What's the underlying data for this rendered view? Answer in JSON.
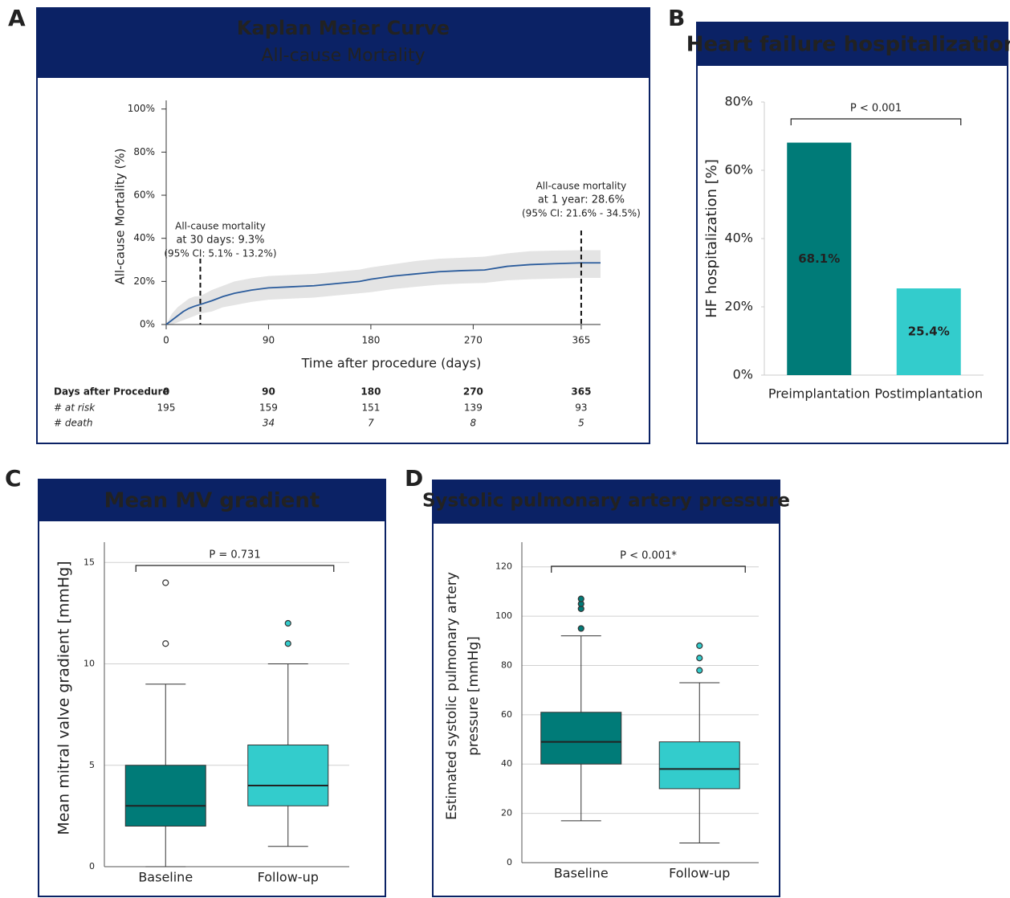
{
  "chart_data": [
    {
      "panel": "A",
      "type": "line",
      "title": "Kaplan Meier Curve",
      "subtitle": "All-cause Mortality",
      "x_label": "Time after procedure (days)",
      "y_label": "All-cause Mortality (%)",
      "x": [
        0,
        5,
        10,
        15,
        20,
        25,
        30,
        40,
        50,
        60,
        75,
        90,
        110,
        130,
        150,
        170,
        180,
        200,
        220,
        240,
        260,
        280,
        300,
        320,
        340,
        365,
        382
      ],
      "values": [
        0,
        2,
        4,
        6,
        7.5,
        8.5,
        9.3,
        11,
        13,
        14.5,
        16,
        17,
        17.5,
        18,
        19,
        20,
        21,
        22.5,
        23.5,
        24.5,
        25,
        25.3,
        27,
        27.8,
        28.2,
        28.6,
        28.6
      ],
      "ci_lower": [
        0,
        0,
        1,
        2,
        3,
        4,
        5.1,
        6,
        8,
        9,
        10.5,
        11.5,
        12,
        12.5,
        13.5,
        14.5,
        15,
        16.5,
        17.5,
        18.5,
        19,
        19.3,
        20.5,
        21,
        21.3,
        21.6,
        21.6
      ],
      "ci_upper": [
        0,
        5,
        8,
        10,
        12,
        13,
        13.2,
        16,
        18,
        20,
        21.5,
        22.5,
        23,
        23.5,
        24.5,
        25.5,
        26.5,
        28,
        29.5,
        30.5,
        31,
        31.5,
        33,
        34,
        34.3,
        34.5,
        34.5
      ],
      "color": "#2b5c9c",
      "ci_color": "#e4e4e4",
      "xlim": [
        0,
        382
      ],
      "xticks": [
        0,
        90,
        180,
        270,
        365
      ],
      "ylim": [
        0,
        104
      ],
      "yticks": [
        {
          "value": 0,
          "label": "0%"
        },
        {
          "value": 20,
          "label": "20%"
        },
        {
          "value": 40,
          "label": "40%"
        },
        {
          "value": 60,
          "label": "60%"
        },
        {
          "value": 80,
          "label": "80%"
        },
        {
          "value": 100,
          "label": "100%"
        }
      ],
      "annotations": [
        {
          "x": 30,
          "text": [
            "All-cause mortality",
            "at 30 days: 9.3%",
            "(95% CI: 5.1% - 13.2%)"
          ]
        },
        {
          "x": 365,
          "text": [
            "All-cause mortality",
            "at 1 year: 28.6%",
            "(95% CI: 21.6% - 34.5%)"
          ]
        }
      ],
      "risk_table": {
        "header": "Days after Procedure",
        "columns": [
          0,
          90,
          180,
          270,
          365
        ],
        "rows": [
          {
            "label": "# at risk",
            "values": [
              195,
              159,
              151,
              139,
              93
            ]
          },
          {
            "label": "# death",
            "values": [
              null,
              34,
              7,
              8,
              5
            ]
          }
        ]
      }
    },
    {
      "panel": "B",
      "type": "bar",
      "title": "Heart failure hospitalization",
      "y_label": "HF hospitalization [%]",
      "categories": [
        "Preimplantation",
        "Postimplantation"
      ],
      "values": [
        68.1,
        25.4
      ],
      "value_labels": [
        "68.1%",
        "25.4%"
      ],
      "colors": [
        "#007b78",
        "#33cccc"
      ],
      "ylim": [
        0,
        80
      ],
      "yticks": [
        {
          "value": 0,
          "label": "0%"
        },
        {
          "value": 20,
          "label": "20%"
        },
        {
          "value": 40,
          "label": "40%"
        },
        {
          "value": 60,
          "label": "60%"
        },
        {
          "value": 80,
          "label": "80%"
        }
      ],
      "significance": "P < 0.001"
    },
    {
      "panel": "C",
      "type": "box",
      "title": "Mean MV gradient",
      "y_label": "Mean mitral valve gradient [mmHg]",
      "categories": [
        "Baseline",
        "Follow-up"
      ],
      "colors": [
        "#007b78",
        "#33cccc"
      ],
      "boxes": [
        {
          "whisker_low": 0,
          "q1": 2,
          "median": 3,
          "q3": 5,
          "whisker_high": 9,
          "outliers": [
            11,
            14
          ]
        },
        {
          "whisker_low": 1,
          "q1": 3,
          "median": 4,
          "q3": 6,
          "whisker_high": 10,
          "outliers": [
            11,
            12
          ]
        }
      ],
      "ylim": [
        0,
        16
      ],
      "yticks": [
        0,
        5,
        10,
        15
      ],
      "grid": true,
      "significance": "P = 0.731"
    },
    {
      "panel": "D",
      "type": "box",
      "title": "Systolic pulmonary artery pressure",
      "y_label": [
        "Estimated systolic pulmonary artery",
        "pressure [mmHg]"
      ],
      "categories": [
        "Baseline",
        "Follow-up"
      ],
      "colors": [
        "#007b78",
        "#33cccc"
      ],
      "boxes": [
        {
          "whisker_low": 17,
          "q1": 40,
          "median": 49,
          "q3": 61,
          "whisker_high": 92,
          "outliers": [
            95,
            103,
            105,
            107
          ]
        },
        {
          "whisker_low": 8,
          "q1": 30,
          "median": 38,
          "q3": 49,
          "whisker_high": 73,
          "outliers": [
            78,
            83,
            88
          ]
        }
      ],
      "ylim": [
        0,
        130
      ],
      "yticks": [
        0,
        20,
        40,
        60,
        80,
        100,
        120
      ],
      "grid": true,
      "significance": "P < 0.001*"
    }
  ]
}
